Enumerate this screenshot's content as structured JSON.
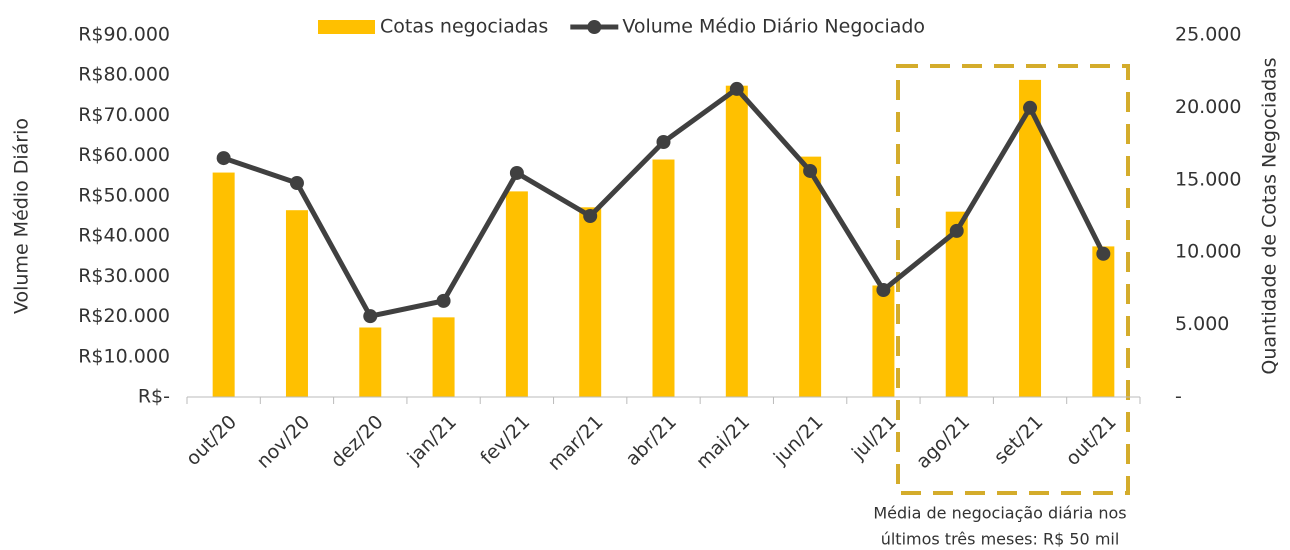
{
  "chart_data": {
    "type": "bar_line",
    "y_label": "Volume Médio Diário",
    "y2_label": "Quantidade de Cotas Negociadas",
    "categories": [
      "out/20",
      "nov/20",
      "dez/20",
      "jan/21",
      "fev/21",
      "mar/21",
      "abr/21",
      "mai/21",
      "jun/21",
      "jul/21",
      "ago/21",
      "set/21",
      "out/21"
    ],
    "series": [
      {
        "name": "Cotas negociadas",
        "type": "bar",
        "axis": "y2",
        "color": "#FFC000",
        "values": [
          15500,
          12900,
          4800,
          5500,
          14200,
          13100,
          16400,
          21500,
          16600,
          7700,
          12800,
          21900,
          10400
        ]
      },
      {
        "name": "Volume Médio Diário Negociado",
        "type": "line",
        "axis": "y",
        "color": "#404040",
        "values": [
          59400,
          53200,
          20100,
          23900,
          55700,
          45000,
          63400,
          76600,
          56200,
          26600,
          41300,
          71900,
          35600
        ]
      }
    ],
    "ylim": [
      0,
      90000
    ],
    "yticks": [
      {
        "value": 0,
        "label": "R$-"
      },
      {
        "value": 10000,
        "label": "R$10.000"
      },
      {
        "value": 20000,
        "label": "R$20.000"
      },
      {
        "value": 30000,
        "label": "R$30.000"
      },
      {
        "value": 40000,
        "label": "R$40.000"
      },
      {
        "value": 50000,
        "label": "R$50.000"
      },
      {
        "value": 60000,
        "label": "R$60.000"
      },
      {
        "value": 70000,
        "label": "R$70.000"
      },
      {
        "value": 80000,
        "label": "R$80.000"
      },
      {
        "value": 90000,
        "label": "R$90.000"
      }
    ],
    "y2lim": [
      0,
      25000
    ],
    "y2ticks": [
      {
        "value": 0,
        "label": "-"
      },
      {
        "value": 5000,
        "label": "5.000"
      },
      {
        "value": 10000,
        "label": "10.000"
      },
      {
        "value": 15000,
        "label": "15.000"
      },
      {
        "value": 20000,
        "label": "20.000"
      },
      {
        "value": 25000,
        "label": "25.000"
      }
    ],
    "annotation": [
      "Média de negociação diária nos",
      "últimos três meses: R$ 50 mil"
    ]
  }
}
